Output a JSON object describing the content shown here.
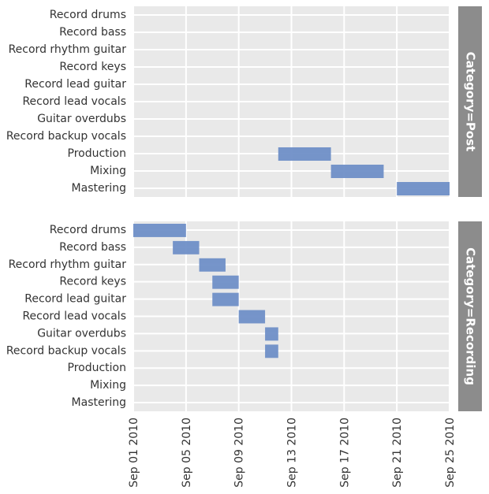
{
  "chart_data": {
    "type": "gantt",
    "x_axis": {
      "type": "date",
      "range": [
        "2010-09-01",
        "2010-09-25"
      ],
      "tick_values": [
        "2010-09-01",
        "2010-09-05",
        "2010-09-09",
        "2010-09-13",
        "2010-09-17",
        "2010-09-21",
        "2010-09-25"
      ],
      "tick_labels": [
        "Sep 01 2010",
        "Sep 05 2010",
        "Sep 09 2010",
        "Sep 13 2010",
        "Sep 17 2010",
        "Sep 21 2010",
        "Sep 25 2010"
      ]
    },
    "tasks": [
      "Record drums",
      "Record bass",
      "Record rhythm guitar",
      "Record keys",
      "Record lead guitar",
      "Record lead vocals",
      "Guitar overdubs",
      "Record backup vocals",
      "Production",
      "Mixing",
      "Mastering"
    ],
    "grid": true,
    "bar_color": "#6f8fc7",
    "panel_background": "#e9e9e9",
    "facet_strip_color": "#8c8c8c",
    "facets": [
      {
        "label": "Category=Post",
        "bars": [
          {
            "task": "Production",
            "start": "2010-09-12",
            "end": "2010-09-16"
          },
          {
            "task": "Mixing",
            "start": "2010-09-16",
            "end": "2010-09-20"
          },
          {
            "task": "Mastering",
            "start": "2010-09-21",
            "end": "2010-09-25"
          }
        ]
      },
      {
        "label": "Category=Recording",
        "bars": [
          {
            "task": "Record drums",
            "start": "2010-09-01",
            "end": "2010-09-05"
          },
          {
            "task": "Record bass",
            "start": "2010-09-04",
            "end": "2010-09-06"
          },
          {
            "task": "Record rhythm guitar",
            "start": "2010-09-06",
            "end": "2010-09-08"
          },
          {
            "task": "Record keys",
            "start": "2010-09-07",
            "end": "2010-09-09"
          },
          {
            "task": "Record lead guitar",
            "start": "2010-09-07",
            "end": "2010-09-09"
          },
          {
            "task": "Record lead vocals",
            "start": "2010-09-09",
            "end": "2010-09-11"
          },
          {
            "task": "Guitar overdubs",
            "start": "2010-09-11",
            "end": "2010-09-12"
          },
          {
            "task": "Record backup vocals",
            "start": "2010-09-11",
            "end": "2010-09-12"
          }
        ]
      }
    ]
  }
}
